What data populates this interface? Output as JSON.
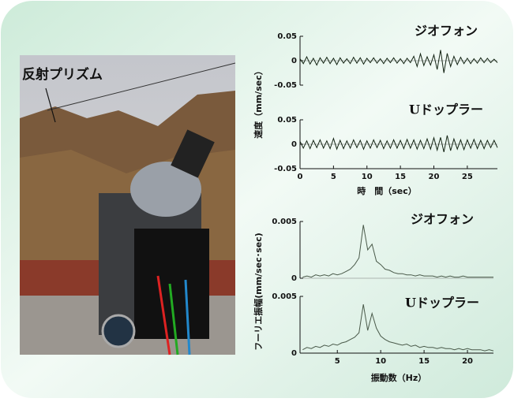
{
  "photo": {
    "label": "反射プリズム"
  },
  "chart_data": [
    {
      "type": "line",
      "title": "ジオフォン",
      "ylabel": "速度（mm/sec）",
      "color": "#142414",
      "ylim": [
        -0.05,
        0.05
      ],
      "yticks": [
        0.05,
        0,
        -0.05
      ],
      "xlim": [
        0,
        29.5
      ],
      "x": [
        0,
        0.5,
        1,
        1.5,
        2,
        2.5,
        3,
        3.5,
        4,
        4.5,
        5,
        5.5,
        6,
        6.5,
        7,
        7.5,
        8,
        8.5,
        9,
        9.5,
        10,
        10.5,
        11,
        11.5,
        12,
        12.5,
        13,
        13.5,
        14,
        14.5,
        15,
        15.5,
        16,
        16.5,
        17,
        17.5,
        18,
        18.5,
        19,
        19.5,
        20,
        20.5,
        21,
        21.5,
        22,
        22.5,
        23,
        23.5,
        24,
        24.5,
        25,
        25.5,
        26,
        26.5,
        27,
        27.5,
        28,
        28.5,
        29,
        29.5
      ],
      "values": [
        0.004,
        -0.006,
        0.008,
        -0.007,
        0.005,
        -0.009,
        0.006,
        -0.005,
        0.007,
        -0.006,
        0.005,
        -0.008,
        0.006,
        -0.005,
        0.004,
        -0.006,
        0.007,
        -0.005,
        0.006,
        -0.007,
        0.005,
        -0.004,
        0.006,
        -0.005,
        0.004,
        -0.006,
        0.005,
        -0.004,
        0.006,
        -0.005,
        0.004,
        -0.006,
        0.005,
        -0.004,
        0.009,
        -0.012,
        0.014,
        -0.01,
        0.008,
        -0.009,
        0.012,
        -0.018,
        0.022,
        -0.025,
        0.015,
        -0.012,
        0.009,
        -0.008,
        0.007,
        -0.006,
        0.005,
        -0.006,
        0.004,
        -0.005,
        0.006,
        -0.004,
        0.005,
        -0.004,
        0.003,
        -0.004
      ]
    },
    {
      "type": "line",
      "title": "Uドップラー",
      "xlabel": "時　間（sec）",
      "color": "#142414",
      "ylim": [
        -0.05,
        0.05
      ],
      "yticks": [
        0.05,
        0,
        -0.05
      ],
      "xlim": [
        0,
        29.5
      ],
      "xticks": [
        0,
        5,
        10,
        15,
        20,
        25
      ],
      "x": [
        0,
        0.5,
        1,
        1.5,
        2,
        2.5,
        3,
        3.5,
        4,
        4.5,
        5,
        5.5,
        6,
        6.5,
        7,
        7.5,
        8,
        8.5,
        9,
        9.5,
        10,
        10.5,
        11,
        11.5,
        12,
        12.5,
        13,
        13.5,
        14,
        14.5,
        15,
        15.5,
        16,
        16.5,
        17,
        17.5,
        18,
        18.5,
        19,
        19.5,
        20,
        20.5,
        21,
        21.5,
        22,
        22.5,
        23,
        23.5,
        24,
        24.5,
        25,
        25.5,
        26,
        26.5,
        27,
        27.5,
        28,
        28.5,
        29,
        29.5
      ],
      "values": [
        0.006,
        -0.008,
        0.007,
        -0.009,
        0.008,
        -0.007,
        0.009,
        -0.008,
        0.007,
        -0.009,
        0.012,
        -0.01,
        0.008,
        -0.009,
        0.007,
        -0.008,
        0.009,
        -0.007,
        0.008,
        -0.01,
        0.007,
        -0.008,
        0.009,
        -0.007,
        0.008,
        -0.009,
        0.007,
        -0.008,
        0.009,
        -0.008,
        0.008,
        -0.009,
        0.01,
        -0.008,
        0.009,
        -0.01,
        0.008,
        -0.009,
        0.011,
        -0.01,
        0.013,
        -0.012,
        0.014,
        -0.016,
        0.018,
        -0.013,
        0.011,
        -0.01,
        0.009,
        -0.011,
        0.009,
        -0.008,
        0.01,
        -0.009,
        0.008,
        -0.009,
        0.008,
        -0.007,
        0.008,
        -0.007
      ]
    },
    {
      "type": "line",
      "title": "ジオフォン",
      "ylabel": "フーリエ振幅(mm/sec･sec)",
      "color": "#4a5a4a",
      "ylim": [
        0,
        0.005
      ],
      "yticks": [
        0.005,
        0
      ],
      "xlim": [
        0.7,
        23
      ],
      "x": [
        1,
        1.5,
        2,
        2.5,
        3,
        3.5,
        4,
        4.5,
        5,
        5.5,
        6,
        6.5,
        7,
        7.5,
        8,
        8.5,
        9,
        9.5,
        10,
        10.5,
        11,
        11.5,
        12,
        12.5,
        13,
        13.5,
        14,
        14.5,
        15,
        15.5,
        16,
        16.5,
        17,
        17.5,
        18,
        18.5,
        19,
        19.5,
        20,
        20.5,
        21,
        21.5,
        22,
        22.5,
        23
      ],
      "values": [
        0.0001,
        0.0002,
        0.0001,
        0.0003,
        0.0002,
        0.0003,
        0.0002,
        0.0004,
        0.0003,
        0.0004,
        0.0006,
        0.0008,
        0.0012,
        0.0018,
        0.0047,
        0.0025,
        0.003,
        0.0015,
        0.0012,
        0.0008,
        0.0007,
        0.0005,
        0.0004,
        0.0004,
        0.0003,
        0.0003,
        0.0002,
        0.0003,
        0.0002,
        0.0002,
        0.0002,
        0.0001,
        0.0002,
        0.0001,
        0.0002,
        0.0001,
        0.0001,
        0.0002,
        0.0001,
        0.0001,
        0.0001,
        0.0001,
        0.0001,
        0.0001,
        0.0001
      ]
    },
    {
      "type": "line",
      "title": "Uドップラー",
      "xlabel": "振動数（Hz）",
      "color": "#4a5a4a",
      "ylim": [
        0,
        0.005
      ],
      "yticks": [
        0.005,
        0
      ],
      "xlim": [
        0.7,
        23
      ],
      "xticks": [
        5,
        10,
        15,
        20
      ],
      "x": [
        1,
        1.5,
        2,
        2.5,
        3,
        3.5,
        4,
        4.5,
        5,
        5.5,
        6,
        6.5,
        7,
        7.5,
        8,
        8.5,
        9,
        9.5,
        10,
        10.5,
        11,
        11.5,
        12,
        12.5,
        13,
        13.5,
        14,
        14.5,
        15,
        15.5,
        16,
        16.5,
        17,
        17.5,
        18,
        18.5,
        19,
        19.5,
        20,
        20.5,
        21,
        21.5,
        22,
        22.5,
        23
      ],
      "values": [
        0.0003,
        0.0005,
        0.0004,
        0.0006,
        0.0005,
        0.0007,
        0.0006,
        0.0008,
        0.0007,
        0.0009,
        0.001,
        0.0012,
        0.0014,
        0.0018,
        0.0043,
        0.002,
        0.0035,
        0.0022,
        0.0015,
        0.0012,
        0.001,
        0.0009,
        0.0008,
        0.0007,
        0.0008,
        0.0006,
        0.0007,
        0.0005,
        0.0006,
        0.0005,
        0.0005,
        0.0004,
        0.0005,
        0.0004,
        0.0004,
        0.0003,
        0.0004,
        0.0003,
        0.0004,
        0.0003,
        0.0003,
        0.0003,
        0.0002,
        0.0003,
        0.0002
      ]
    }
  ]
}
